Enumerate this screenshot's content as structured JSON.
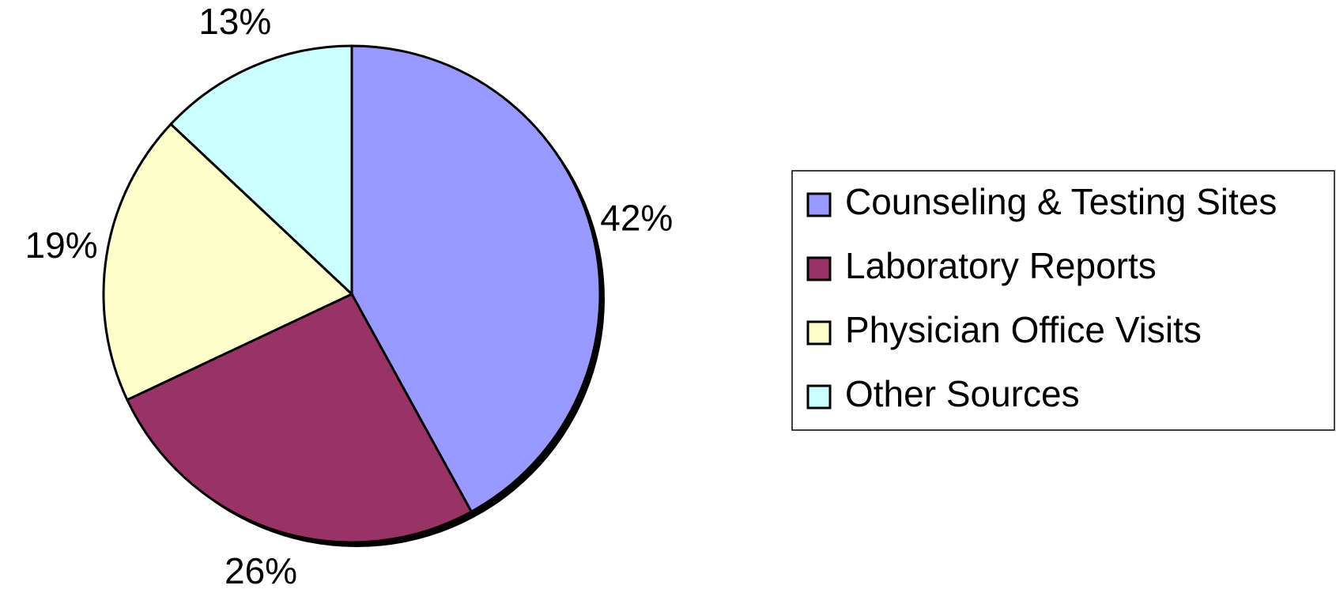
{
  "chart_data": {
    "type": "pie",
    "categories": [
      "Counseling & Testing Sites",
      "Laboratory Reports",
      "Physician Office Visits",
      "Other Sources"
    ],
    "values": [
      42,
      26,
      19,
      13
    ],
    "value_labels": [
      "42%",
      "26%",
      "19%",
      "13%"
    ],
    "colors": [
      "#9999ff",
      "#993366",
      "#ffffcc",
      "#ccffff"
    ],
    "legend": "right"
  }
}
